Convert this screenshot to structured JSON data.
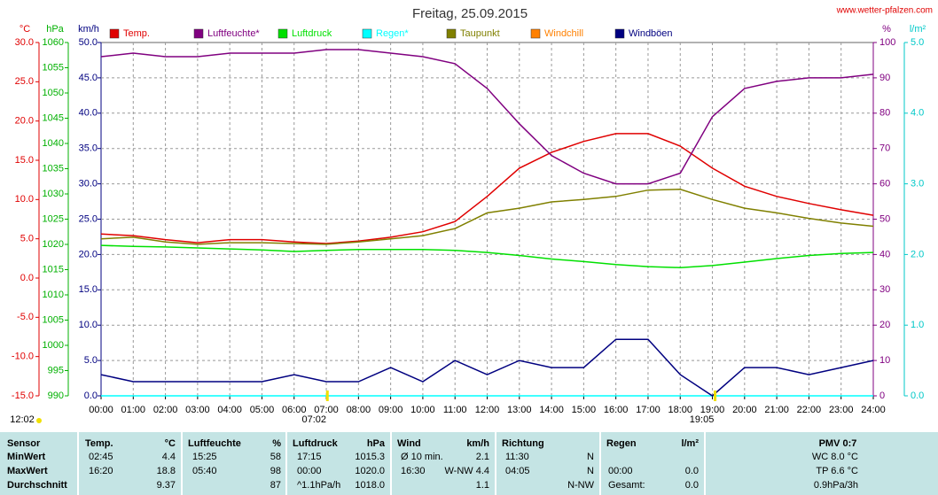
{
  "chart_data": {
    "type": "line",
    "title": "Freitag, 25.09.2015",
    "source": "www.wetter-pfalzen.com",
    "categories": [
      "00:00",
      "01:00",
      "02:00",
      "03:00",
      "04:00",
      "05:00",
      "06:00",
      "07:00",
      "08:00",
      "09:00",
      "10:00",
      "11:00",
      "12:00",
      "13:00",
      "14:00",
      "15:00",
      "16:00",
      "17:00",
      "18:00",
      "19:00",
      "20:00",
      "21:00",
      "22:00",
      "23:00",
      "24:00"
    ],
    "axes": [
      {
        "unit": "°C",
        "side": "left",
        "color": "#e00000",
        "lim": [
          -15,
          30
        ],
        "ticks": [
          {
            "value": 30,
            "label": "30.0"
          },
          {
            "value": 25,
            "label": "25.0"
          },
          {
            "value": 20,
            "label": "20.0"
          },
          {
            "value": 15,
            "label": "15.0"
          },
          {
            "value": 10,
            "label": "10.0"
          },
          {
            "value": 5,
            "label": "5.0"
          },
          {
            "value": 0,
            "label": "0.0"
          },
          {
            "value": -5,
            "label": "-5.0"
          },
          {
            "value": -10,
            "label": "-10.0"
          },
          {
            "value": -15,
            "label": "-15.0"
          }
        ]
      },
      {
        "unit": "hPa",
        "side": "left",
        "color": "#00b000",
        "lim": [
          990,
          1060
        ],
        "ticks": [
          1060,
          1055,
          1050,
          1045,
          1040,
          1035,
          1030,
          1025,
          1020,
          1015,
          1010,
          1005,
          1000,
          995,
          990
        ]
      },
      {
        "unit": "km/h",
        "side": "left",
        "color": "#000080",
        "lim": [
          0,
          50
        ],
        "grid": true,
        "ticks": [
          {
            "value": 50,
            "label": "50.0"
          },
          {
            "value": 45,
            "label": "45.0"
          },
          {
            "value": 40,
            "label": "40.0"
          },
          {
            "value": 35,
            "label": "35.0"
          },
          {
            "value": 30,
            "label": "30.0"
          },
          {
            "value": 25,
            "label": "25.0"
          },
          {
            "value": 20,
            "label": "20.0"
          },
          {
            "value": 15,
            "label": "15.0"
          },
          {
            "value": 10,
            "label": "10.0"
          },
          {
            "value": 5,
            "label": "5.0"
          },
          {
            "value": 0,
            "label": "0.0"
          }
        ]
      },
      {
        "unit": "%",
        "side": "right",
        "color": "#800080",
        "lim": [
          0,
          100
        ],
        "ticks": [
          100,
          90,
          80,
          70,
          60,
          50,
          40,
          30,
          20,
          10,
          0
        ]
      },
      {
        "unit": "l/m²",
        "side": "right",
        "color": "#00c8c8",
        "lim": [
          0,
          5
        ],
        "ticks": [
          {
            "value": 5,
            "label": "5.0"
          },
          {
            "value": 4,
            "label": "4.0"
          },
          {
            "value": 3,
            "label": "3.0"
          },
          {
            "value": 2,
            "label": "2.0"
          },
          {
            "value": 1,
            "label": "1.0"
          },
          {
            "value": 0,
            "label": "0.0"
          }
        ]
      }
    ],
    "series": [
      {
        "name": "Temp.",
        "color": "#e00000",
        "axis": 0,
        "values": [
          5.6,
          5.4,
          4.9,
          4.5,
          4.9,
          4.9,
          4.6,
          4.4,
          4.7,
          5.2,
          5.9,
          7.2,
          10.4,
          14.0,
          16.0,
          17.4,
          18.4,
          18.4,
          16.8,
          14.0,
          11.7,
          10.4,
          9.5,
          8.7,
          8.0
        ]
      },
      {
        "name": "Luftfeuchte*",
        "color": "#800080",
        "axis": 3,
        "values": [
          96,
          97,
          96,
          96,
          97,
          97,
          97,
          98,
          98,
          97,
          96,
          94,
          87,
          77,
          68,
          63,
          60,
          60,
          63,
          79,
          87,
          89,
          90,
          90,
          91
        ]
      },
      {
        "name": "Luftdruck",
        "color": "#00e000",
        "axis": 1,
        "values": [
          1019.8,
          1019.6,
          1019.5,
          1019.3,
          1019.1,
          1018.9,
          1018.6,
          1018.8,
          1019.0,
          1019.0,
          1019.0,
          1018.8,
          1018.4,
          1017.8,
          1017.1,
          1016.6,
          1016.0,
          1015.6,
          1015.4,
          1015.8,
          1016.5,
          1017.2,
          1017.8,
          1018.2,
          1018.4
        ]
      },
      {
        "name": "Regen*",
        "color": "#00ffff",
        "axis": 4,
        "values": [
          0,
          0,
          0,
          0,
          0,
          0,
          0,
          0,
          0,
          0,
          0,
          0,
          0,
          0,
          0,
          0,
          0,
          0,
          0,
          0,
          0,
          0,
          0,
          0,
          0
        ]
      },
      {
        "name": "Taupunkt",
        "color": "#808000",
        "axis": 0,
        "values": [
          5.0,
          5.2,
          4.6,
          4.3,
          4.5,
          4.5,
          4.4,
          4.3,
          4.6,
          5.0,
          5.4,
          6.3,
          8.3,
          8.9,
          9.7,
          10.0,
          10.4,
          11.2,
          11.3,
          10.0,
          8.9,
          8.3,
          7.6,
          7.0,
          6.6
        ]
      },
      {
        "name": "Windchill",
        "color": "#ff8000",
        "axis": 0,
        "values": [
          null,
          null,
          null,
          null,
          null,
          null,
          null,
          null,
          null,
          null,
          null,
          null,
          null,
          null,
          null,
          null,
          null,
          null,
          null,
          null,
          null,
          null,
          null,
          null,
          null
        ]
      },
      {
        "name": "Windböen",
        "color": "#000080",
        "axis": 2,
        "values": [
          3,
          2,
          2,
          2,
          2,
          2,
          3,
          2,
          2,
          4,
          2,
          5,
          3,
          5,
          4,
          4,
          8,
          8,
          3,
          0,
          4,
          4,
          3,
          4,
          5
        ]
      }
    ],
    "daylength": "12:02",
    "sunrise": "07:02",
    "sunset": "19:05"
  },
  "table": {
    "headers": [
      "Sensor",
      "Temp.",
      "°C",
      "Luftfeuchte",
      "%",
      "Luftdruck",
      "hPa",
      "Wind",
      "km/h",
      "Richtung",
      "Regen",
      "l/m²",
      "PMV 0:7"
    ],
    "rows": [
      [
        "MinWert",
        "02:45",
        "4.4",
        "15:25",
        "58",
        "17:15",
        "1015.3",
        "Ø 10 min.",
        "2.1",
        "11:30",
        "N",
        null,
        null,
        "WC 8.0 °C"
      ],
      [
        "MaxWert",
        "16:20",
        "18.8",
        "05:40",
        "98",
        "00:00",
        "1020.0",
        "16:30",
        "W-NW 4.4",
        "04:05",
        "N",
        "00:00",
        "0.0",
        "TP 6.6 °C"
      ],
      [
        "Durchschnitt",
        null,
        "9.37",
        null,
        "87",
        "^1.1hPa/h",
        "1018.0",
        null,
        "1.1",
        null,
        "N-NW",
        "Gesamt:",
        "0.0",
        "0.9hPa/3h"
      ]
    ]
  }
}
